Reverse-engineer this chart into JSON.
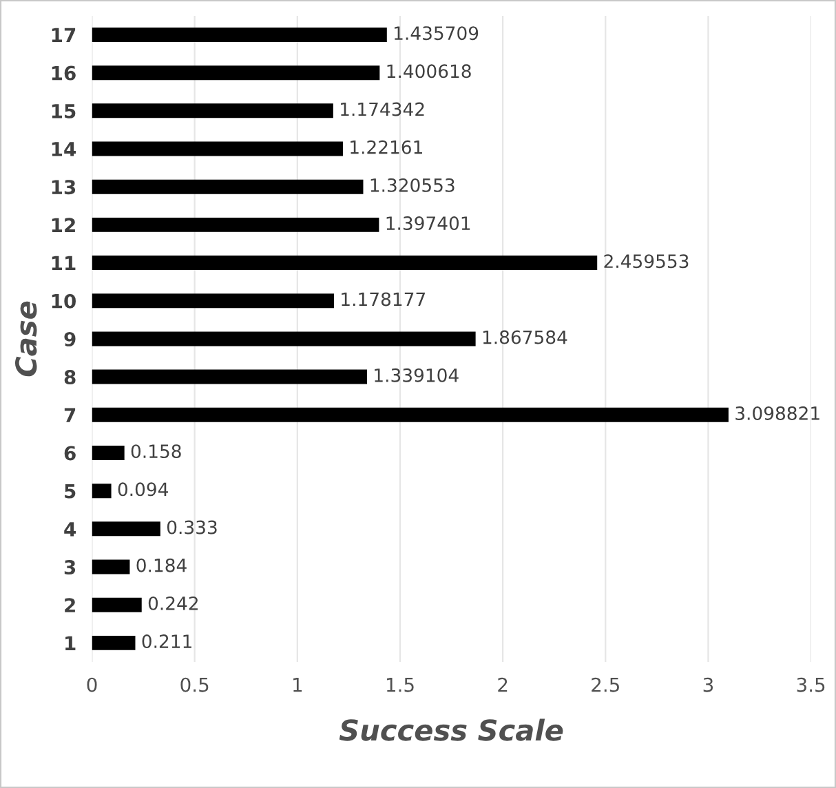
{
  "chart_data": {
    "type": "bar",
    "orientation": "horizontal",
    "xlabel": "Success Scale",
    "ylabel": "Case",
    "categories": [
      "17",
      "16",
      "15",
      "14",
      "13",
      "12",
      "11",
      "10",
      "9",
      "8",
      "7",
      "6",
      "5",
      "4",
      "3",
      "2",
      "1"
    ],
    "values": [
      1.435709,
      1.400618,
      1.174342,
      1.22161,
      1.320553,
      1.397401,
      2.459553,
      1.178177,
      1.867584,
      1.339104,
      3.098821,
      0.158,
      0.094,
      0.333,
      0.184,
      0.242,
      0.211
    ],
    "color": "#000000",
    "xlim": [
      0,
      3.5
    ],
    "xticks": [
      0,
      0.5,
      1,
      1.5,
      2,
      2.5,
      3,
      3.5
    ],
    "grid": "x",
    "data_labels": true
  }
}
